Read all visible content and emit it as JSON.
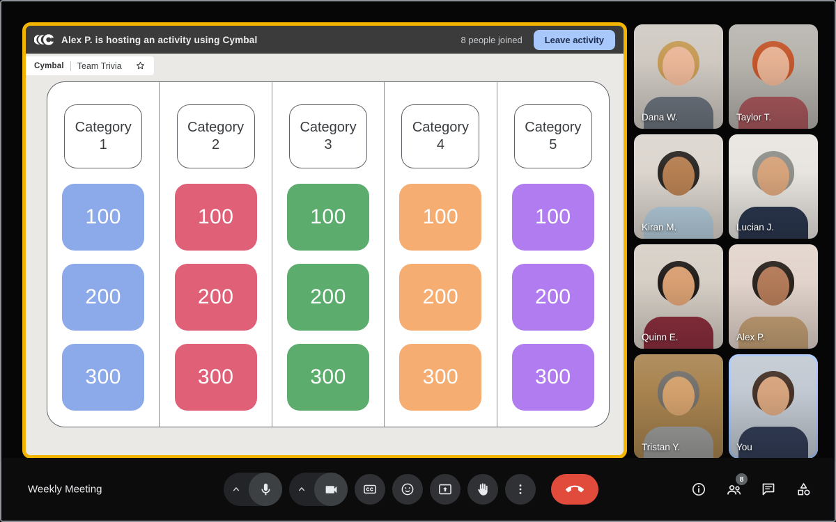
{
  "activity": {
    "border_color": "#F2B400",
    "header": {
      "logo_icon": "cymbal-logo",
      "title": "Alex P. is hosting an activity using Cymbal",
      "people_joined": "8 people joined",
      "leave_button_label": "Leave activity",
      "leave_button_color": "#A8C7FA"
    },
    "tab": {
      "brand": "Cymbal",
      "title": "Team Trivia",
      "star_icon": "star-outline-icon"
    },
    "board": {
      "columns": [
        {
          "category": "Category 1",
          "color": "#8CA9E9",
          "values": [
            "100",
            "200",
            "300"
          ]
        },
        {
          "category": "Category 2",
          "color": "#E06078",
          "values": [
            "100",
            "200",
            "300"
          ]
        },
        {
          "category": "Category 3",
          "color": "#5CAC6E",
          "values": [
            "100",
            "200",
            "300"
          ]
        },
        {
          "category": "Category 4",
          "color": "#F6AD71",
          "values": [
            "100",
            "200",
            "300"
          ]
        },
        {
          "category": "Category 5",
          "color": "#B07CF0",
          "values": [
            "100",
            "200",
            "300"
          ]
        }
      ]
    }
  },
  "participants": [
    {
      "name": "Dana W.",
      "self": false,
      "colors": {
        "bg": "#CFC9C2",
        "hair": "#C59A55",
        "skin": "#EAB698",
        "shirt": "#6F7680"
      }
    },
    {
      "name": "Taylor T.",
      "self": false,
      "colors": {
        "bg": "#B7B4AE",
        "hair": "#C3562B",
        "skin": "#E6B193",
        "shirt": "#AC5A5F"
      }
    },
    {
      "name": "Kiran M.",
      "self": false,
      "colors": {
        "bg": "#DBD5CE",
        "hair": "#2B2825",
        "skin": "#B57F52",
        "shirt": "#B8D0E0"
      }
    },
    {
      "name": "Lucian J.",
      "self": false,
      "colors": {
        "bg": "#E8E5E0",
        "hair": "#8F8F8B",
        "skin": "#D6A37B",
        "shirt": "#2C3850"
      }
    },
    {
      "name": "Quinn E.",
      "self": false,
      "colors": {
        "bg": "#D6CFC6",
        "hair": "#221E1C",
        "skin": "#D89F72",
        "shirt": "#8E2F3E"
      }
    },
    {
      "name": "Alex P.",
      "self": false,
      "colors": {
        "bg": "#E2D4CC",
        "hair": "#2B241F",
        "skin": "#B27A58",
        "shirt": "#C7A378"
      }
    },
    {
      "name": "Tristan Y.",
      "self": false,
      "colors": {
        "bg": "#A8834F",
        "hair": "#73706C",
        "skin": "#D2A06C",
        "shirt": "#9D9E9C"
      }
    },
    {
      "name": "You",
      "self": true,
      "colors": {
        "bg": "#C2C9D2",
        "hair": "#463228",
        "skin": "#D6A47E",
        "shirt": "#333E58"
      }
    }
  ],
  "footer": {
    "meeting_title": "Weekly Meeting",
    "controls": [
      "chevron-up",
      "microphone",
      "chevron-up",
      "camera",
      "captions",
      "reactions",
      "present-screen",
      "raise-hand",
      "more-options",
      "end-call"
    ],
    "end_call_color": "#E14B3C",
    "self_highlight_color": "#A8C7FA",
    "right_controls": [
      "info",
      "people",
      "chat",
      "activities"
    ],
    "people_count_badge": "8"
  }
}
